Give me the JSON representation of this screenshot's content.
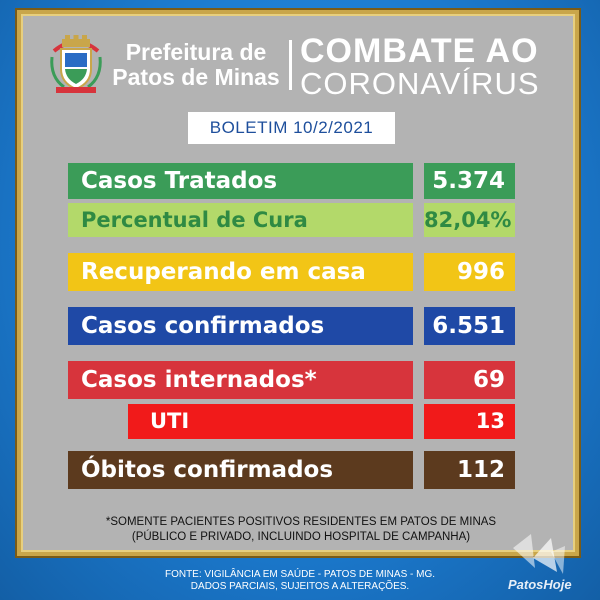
{
  "header": {
    "prefeitura_line1": "Prefeitura de",
    "prefeitura_line2": "Patos de Minas",
    "combate": "COMBATE AO",
    "coronavirus": "CORONAVÍRUS",
    "crest_icon": "city-crest-icon"
  },
  "boletim": "BOLETIM 10/2/2021",
  "stats": {
    "tratados": {
      "label": "Casos Tratados",
      "value": "5.374",
      "color": "#3b9c58"
    },
    "cura": {
      "label": "Percentual de Cura",
      "value": "82,04%",
      "color": "#b3d96a",
      "text_color": "#2f8a43"
    },
    "recuperando": {
      "label": "Recuperando em casa",
      "value": "996",
      "color": "#f2c516"
    },
    "confirmados": {
      "label": "Casos confirmados",
      "value": "6.551",
      "color": "#1f49a6"
    },
    "internados": {
      "label": "Casos internados*",
      "value": "69",
      "color": "#d7343c"
    },
    "uti": {
      "label": "UTI",
      "value": "13",
      "color": "#f11a1a"
    },
    "obitos": {
      "label": "Óbitos confirmados",
      "value": "112",
      "color": "#5c3a1e"
    }
  },
  "note": {
    "line1": "*SOMENTE PACIENTES POSITIVOS RESIDENTES EM PATOS DE MINAS",
    "line2": "(PÚBLICO E PRIVADO, INCLUINDO HOSPITAL DE CAMPANHA)"
  },
  "footer": {
    "line1": "FONTE: VIGILÂNCIA EM SAÚDE - PATOS DE MINAS - MG.",
    "line2": "DADOS PARCIAIS, SUJEITOS A ALTERAÇÕES."
  },
  "brand": "PatosHoje",
  "brand_icon": "patoshoje-logo-icon"
}
